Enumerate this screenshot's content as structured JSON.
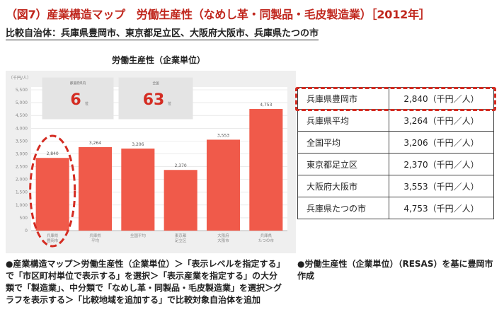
{
  "header": {
    "title": "（図7）産業構造マップ　労働生産性（なめし革・同製品・毛皮製造業）［2012年］",
    "subtitle": "比較自治体：兵庫県豊岡市、東京都足立区、大阪府大阪市、兵庫県たつの市"
  },
  "chart_data": {
    "type": "bar",
    "title": "労働生産性（企業単位）",
    "ylabel": "（千円/人）",
    "ylim": [
      0,
      5500
    ],
    "yticks": [
      0,
      500,
      1000,
      1500,
      2000,
      2500,
      3000,
      3500,
      4000,
      4500,
      5000,
      5500
    ],
    "ytick_labels": [
      "0",
      "500",
      "1,000",
      "1,500",
      "2,000",
      "2,500",
      "3,000",
      "3,500",
      "4,000",
      "4,500",
      "5,000",
      "5,500"
    ],
    "categories": [
      "兵庫県豊岡市",
      "兵庫県平均",
      "全国平均",
      "東京都足立区",
      "大阪府大阪市",
      "兵庫県たつの市"
    ],
    "category_labels": [
      [
        "兵庫県",
        "豊岡市"
      ],
      [
        "兵庫県",
        "平均"
      ],
      [
        "全国平均"
      ],
      [
        "東京都",
        "足立区"
      ],
      [
        "大阪府",
        "大阪市"
      ],
      [
        "兵庫県",
        "たつの市"
      ]
    ],
    "values": [
      2840,
      3264,
      3206,
      2370,
      3553,
      4753
    ],
    "value_labels": [
      "2,840",
      "3,264",
      "3,206",
      "2,370",
      "3,553",
      "4,753"
    ],
    "bar_color": "#f05a4a",
    "highlight_color": "#d42c22",
    "grid": true,
    "highlight_index": 0,
    "rank_boxes": [
      {
        "label": "都道府県内",
        "value": "6",
        "unit": "位"
      },
      {
        "label": "全国",
        "value": "63",
        "unit": "位"
      }
    ]
  },
  "table": {
    "rows": [
      {
        "name": "兵庫県豊岡市",
        "value": "2,840（千円／人）"
      },
      {
        "name": "兵庫県平均",
        "value": "3,264（千円／人）"
      },
      {
        "name": "全国平均",
        "value": "3,206（千円／人）"
      },
      {
        "name": "東京都足立区",
        "value": "2,370（千円／人）"
      },
      {
        "name": "大阪府大阪市",
        "value": "3,553（千円／人）"
      },
      {
        "name": "兵庫県たつの市",
        "value": "4,753（千円／人）"
      }
    ]
  },
  "notes": {
    "left": "●産業構造マップ＞労働生産性（企業単位）＞「表示レベルを指定する」で「市区町村単位で表示する」を選択＞「表示産業を指定する」の大分類で「製造業」、中分類で「なめし革・同製品・毛皮製造業」を選択＞グラフを表示する＞「比較地域を追加する」で比較対象自治体を追加",
    "right": "●労働生産性（企業単位）（RESAS）を基に豊岡市作成"
  }
}
